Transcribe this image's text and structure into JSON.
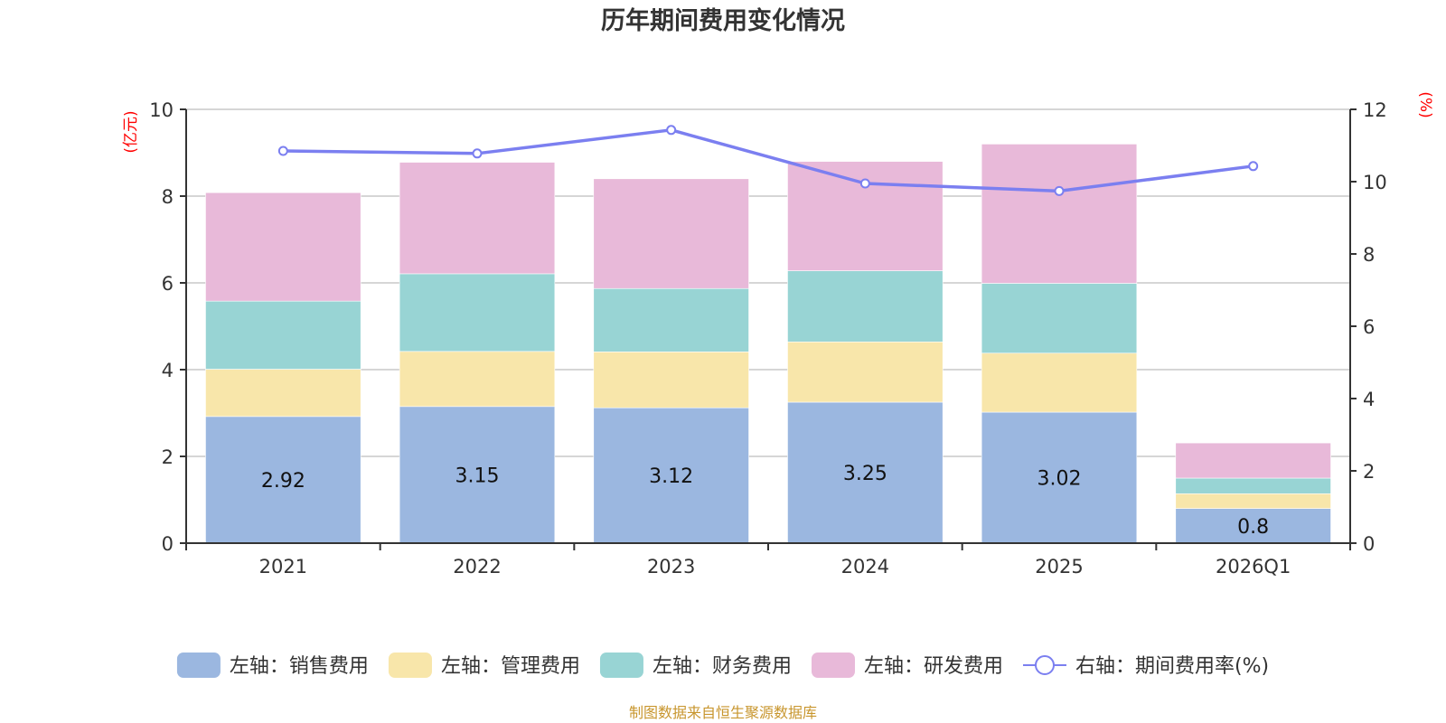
{
  "chart_data": {
    "type": "bar",
    "stacked": true,
    "title": "历年期间费用变化情况",
    "categories": [
      "2021",
      "2022",
      "2023",
      "2024",
      "2025",
      "2026Q1"
    ],
    "left_axis": {
      "unit_label": "(亿元)",
      "range": [
        0,
        10
      ],
      "ticks": [
        0,
        2,
        4,
        6,
        8,
        10
      ]
    },
    "right_axis": {
      "unit_label": "(%)",
      "range": [
        0,
        12
      ],
      "ticks": [
        0,
        2,
        4,
        6,
        8,
        10,
        12
      ]
    },
    "grid": true,
    "series": [
      {
        "name": "左轴：销售费用",
        "type": "bar",
        "axis": "left",
        "color": "#9bb7e0",
        "values": [
          2.92,
          3.15,
          3.12,
          3.25,
          3.02,
          0.8
        ],
        "labels": [
          "2.92",
          "3.15",
          "3.12",
          "3.25",
          "3.02",
          "0.8"
        ]
      },
      {
        "name": "左轴：管理费用",
        "type": "bar",
        "axis": "left",
        "color": "#f8e6aa",
        "values": [
          1.09,
          1.27,
          1.29,
          1.39,
          1.36,
          0.34
        ]
      },
      {
        "name": "左轴：财务费用",
        "type": "bar",
        "axis": "left",
        "color": "#98d4d4",
        "values": [
          1.57,
          1.79,
          1.46,
          1.64,
          1.61,
          0.36
        ]
      },
      {
        "name": "左轴：研发费用",
        "type": "bar",
        "axis": "left",
        "color": "#e8b9d9",
        "values": [
          2.5,
          2.57,
          2.53,
          2.52,
          3.21,
          0.81
        ]
      },
      {
        "name": "右轴：期间费用率(%)",
        "type": "line",
        "axis": "right",
        "color": "#7b7ff0",
        "values": [
          10.85,
          10.78,
          11.43,
          9.95,
          9.74,
          10.43
        ]
      }
    ],
    "legend_position": "bottom",
    "source": "制图数据来自恒生聚源数据库"
  }
}
